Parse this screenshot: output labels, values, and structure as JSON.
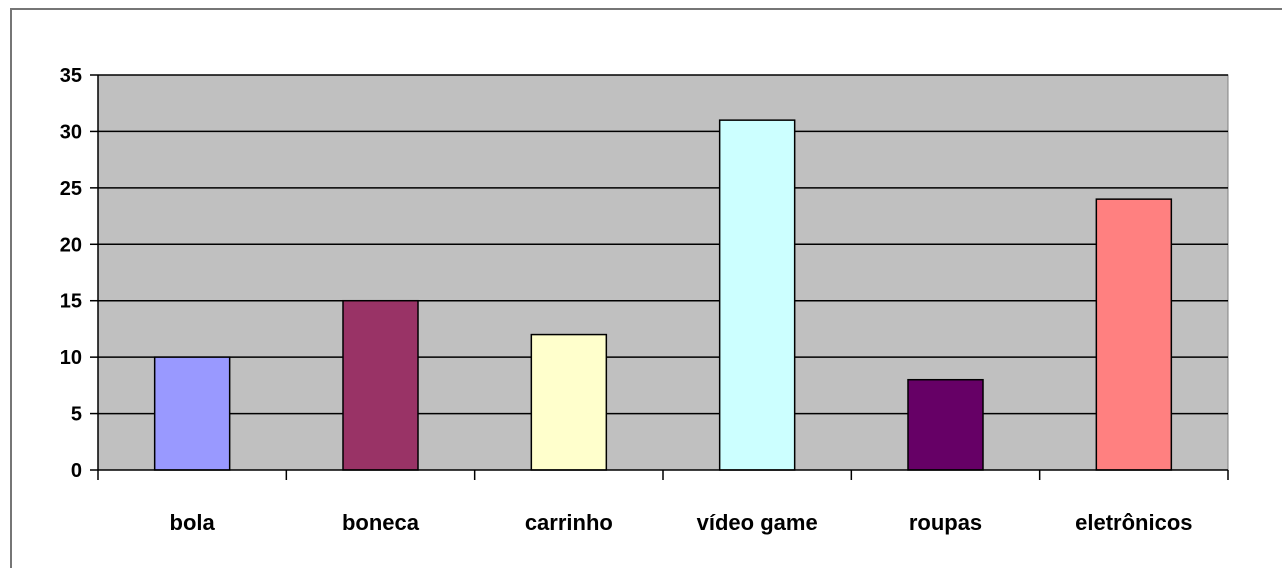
{
  "chart_data": {
    "type": "bar",
    "categories": [
      "bola",
      "boneca",
      "carrinho",
      "vídeo game",
      "roupas",
      "eletrônicos"
    ],
    "values": [
      10,
      15,
      12,
      31,
      8,
      24
    ],
    "bar_colors": [
      "#9999ff",
      "#993366",
      "#ffffcc",
      "#ccffff",
      "#660066",
      "#ff8080"
    ],
    "plot_background": "#c0c0c0",
    "ylim": [
      0,
      35
    ],
    "yticks": [
      0,
      5,
      10,
      15,
      20,
      25,
      30,
      35
    ],
    "grid": true,
    "legend": false,
    "title": "",
    "xlabel": "",
    "ylabel": ""
  }
}
